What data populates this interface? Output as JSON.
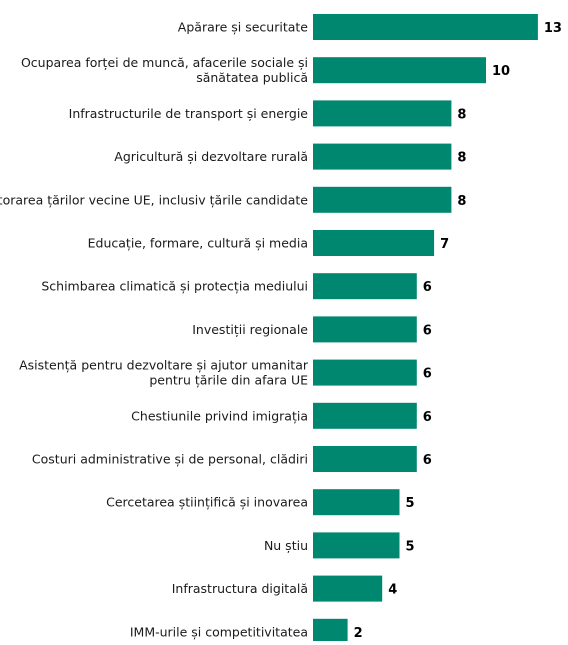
{
  "chart_data": {
    "type": "bar",
    "orientation": "horizontal",
    "categories": [
      [
        "Apărare și securitate"
      ],
      [
        "Ocuparea forței de muncă, afacerile sociale și",
        "sănătatea publică"
      ],
      [
        "Infrastructurile de transport și energie"
      ],
      [
        "Agricultură și dezvoltare rurală"
      ],
      [
        "Ajutorarea țărilor vecine UE, inclusiv țările candidate"
      ],
      [
        "Educație, formare, cultură și media"
      ],
      [
        "Schimbarea climatică și protecția mediului"
      ],
      [
        "Investiții regionale"
      ],
      [
        "Asistență pentru dezvoltare și ajutor umanitar",
        "pentru țările din afara UE"
      ],
      [
        "Chestiunile privind imigrația"
      ],
      [
        "Costuri administrative și de personal, clădiri"
      ],
      [
        "Cercetarea științifică și inovarea"
      ],
      [
        "Nu știu"
      ],
      [
        "Infrastructura digitală"
      ],
      [
        "IMM-urile și competitivitatea"
      ]
    ],
    "values": [
      13,
      10,
      8,
      8,
      8,
      7,
      6,
      6,
      6,
      6,
      6,
      5,
      5,
      4,
      2
    ],
    "bar_color": "#008770",
    "xlim": [
      0,
      13
    ]
  }
}
